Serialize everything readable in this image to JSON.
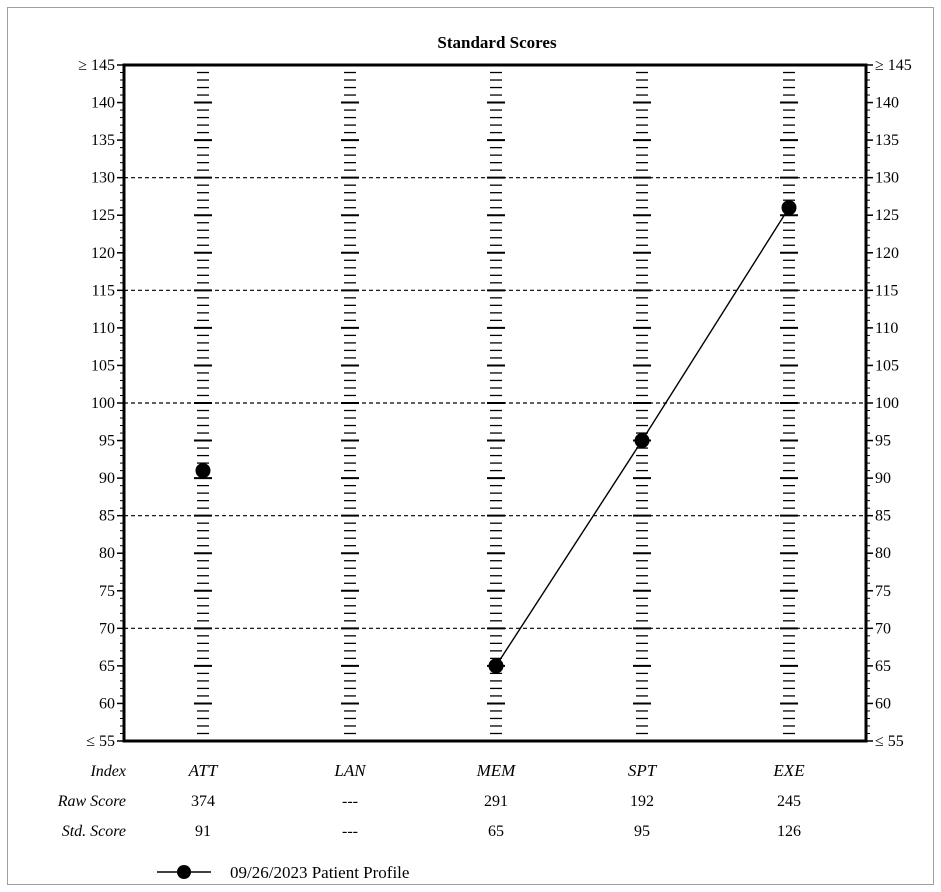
{
  "chart_data": {
    "type": "line",
    "title": "Standard Scores",
    "ylim": [
      55,
      145
    ],
    "yticks": [
      "≥ 145",
      "140",
      "135",
      "130",
      "125",
      "120",
      "115",
      "110",
      "105",
      "100",
      "95",
      "90",
      "85",
      "80",
      "75",
      "70",
      "65",
      "60",
      "≤ 55"
    ],
    "reference_lines": [
      130,
      115,
      100,
      85,
      70
    ],
    "categories": [
      "ATT",
      "LAN",
      "MEM",
      "SPT",
      "EXE"
    ],
    "series": [
      {
        "name": "09/26/2023 Patient Profile",
        "values": [
          91,
          null,
          65,
          95,
          126
        ]
      }
    ],
    "connect_from_index": 2,
    "table": {
      "row_labels": [
        "Index",
        "Raw Score",
        "Std. Score"
      ],
      "raw_scores": [
        "374",
        "---",
        "291",
        "192",
        "245"
      ],
      "std_scores": [
        "91",
        "---",
        "65",
        "95",
        "126"
      ]
    },
    "legend_position": "bottom-left",
    "grid": false,
    "colors": {
      "line": "#000000",
      "marker": "#000000",
      "reference": "#000000"
    }
  }
}
